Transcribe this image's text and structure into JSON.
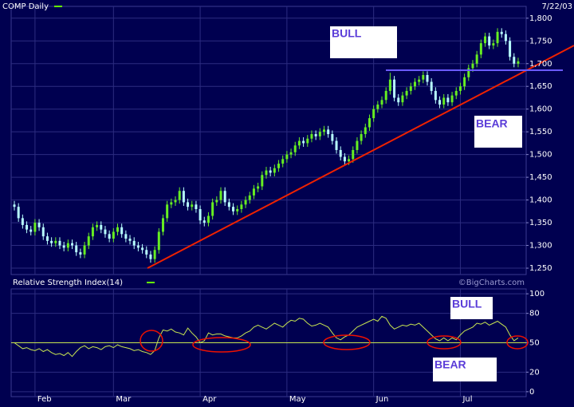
{
  "chart_data": [
    {
      "type": "candlestick",
      "title": "COMP Daily",
      "date": "7/22/03",
      "up_color": "#66ee22",
      "down_color": "#b8ffff",
      "grid": true,
      "ylim": [
        1236,
        1826
      ],
      "yticks": [
        {
          "value": 1250,
          "label": "1,250"
        },
        {
          "value": 1300,
          "label": "1,300"
        },
        {
          "value": 1350,
          "label": "1,350"
        },
        {
          "value": 1400,
          "label": "1,400"
        },
        {
          "value": 1450,
          "label": "1,450"
        },
        {
          "value": 1500,
          "label": "1,500"
        },
        {
          "value": 1550,
          "label": "1,550"
        },
        {
          "value": 1600,
          "label": "1,600"
        },
        {
          "value": 1650,
          "label": "1,650"
        },
        {
          "value": 1700,
          "label": "1,700"
        },
        {
          "value": 1750,
          "label": "1,750"
        },
        {
          "value": 1800,
          "label": "1,800"
        }
      ],
      "categories": [
        null,
        null,
        null,
        null,
        null,
        "Feb",
        null,
        null,
        null,
        null,
        null,
        null,
        null,
        null,
        null,
        null,
        null,
        null,
        null,
        null,
        null,
        null,
        null,
        null,
        "Mar",
        null,
        null,
        null,
        null,
        null,
        null,
        null,
        null,
        null,
        null,
        null,
        null,
        null,
        null,
        null,
        null,
        null,
        null,
        null,
        null,
        "Apr",
        null,
        null,
        null,
        null,
        null,
        null,
        null,
        null,
        null,
        null,
        null,
        null,
        null,
        null,
        null,
        null,
        null,
        null,
        null,
        null,
        "May",
        null,
        null,
        null,
        null,
        null,
        null,
        null,
        null,
        null,
        null,
        null,
        null,
        null,
        null,
        null,
        null,
        null,
        null,
        null,
        null,
        "Jun",
        null,
        null,
        null,
        null,
        null,
        null,
        null,
        null,
        null,
        null,
        null,
        null,
        null,
        null,
        null,
        null,
        null,
        null,
        null,
        null,
        "Jul",
        null,
        null,
        null,
        null,
        null,
        null,
        null,
        null,
        null,
        null,
        null,
        null,
        null,
        null
      ],
      "open": [
        1390,
        1385,
        1360,
        1345,
        1335,
        1330,
        1350,
        1340,
        1320,
        1310,
        1305,
        1310,
        1300,
        1295,
        1305,
        1300,
        1285,
        1280,
        1300,
        1320,
        1340,
        1345,
        1335,
        1325,
        1315,
        1330,
        1340,
        1325,
        1315,
        1310,
        1300,
        1295,
        1290,
        1280,
        1270,
        1290,
        1330,
        1360,
        1390,
        1395,
        1400,
        1420,
        1395,
        1385,
        1390,
        1380,
        1355,
        1350,
        1365,
        1395,
        1400,
        1420,
        1395,
        1385,
        1375,
        1380,
        1390,
        1400,
        1410,
        1425,
        1430,
        1455,
        1465,
        1460,
        1470,
        1480,
        1490,
        1500,
        1505,
        1520,
        1530,
        1525,
        1535,
        1545,
        1540,
        1550,
        1555,
        1545,
        1530,
        1510,
        1495,
        1485,
        1490,
        1510,
        1530,
        1545,
        1560,
        1580,
        1600,
        1610,
        1620,
        1640,
        1665,
        1625,
        1615,
        1630,
        1640,
        1650,
        1660,
        1665,
        1675,
        1660,
        1640,
        1620,
        1610,
        1625,
        1615,
        1630,
        1640,
        1650,
        1670,
        1690,
        1700,
        1720,
        1745,
        1760,
        1740,
        1745,
        1770,
        1765,
        1750,
        1715,
        1700
      ],
      "high": [
        1398,
        1393,
        1368,
        1353,
        1343,
        1358,
        1358,
        1348,
        1328,
        1318,
        1318,
        1318,
        1308,
        1313,
        1313,
        1308,
        1293,
        1308,
        1328,
        1348,
        1353,
        1353,
        1343,
        1333,
        1338,
        1348,
        1348,
        1333,
        1323,
        1318,
        1308,
        1303,
        1298,
        1288,
        1298,
        1338,
        1368,
        1398,
        1403,
        1408,
        1428,
        1428,
        1403,
        1398,
        1398,
        1388,
        1363,
        1373,
        1403,
        1408,
        1428,
        1428,
        1403,
        1393,
        1388,
        1398,
        1408,
        1418,
        1433,
        1438,
        1463,
        1473,
        1473,
        1478,
        1488,
        1498,
        1508,
        1513,
        1528,
        1538,
        1538,
        1543,
        1553,
        1553,
        1558,
        1563,
        1563,
        1553,
        1538,
        1518,
        1503,
        1498,
        1518,
        1538,
        1553,
        1568,
        1588,
        1608,
        1618,
        1628,
        1648,
        1680,
        1673,
        1633,
        1638,
        1648,
        1658,
        1668,
        1673,
        1683,
        1683,
        1668,
        1648,
        1628,
        1633,
        1633,
        1638,
        1648,
        1658,
        1678,
        1698,
        1708,
        1728,
        1753,
        1768,
        1768,
        1753,
        1778,
        1778,
        1773,
        1758,
        1723,
        1713
      ],
      "low": [
        1377,
        1352,
        1337,
        1327,
        1322,
        1322,
        1332,
        1312,
        1302,
        1297,
        1297,
        1292,
        1287,
        1287,
        1292,
        1277,
        1272,
        1272,
        1292,
        1312,
        1332,
        1327,
        1317,
        1307,
        1307,
        1322,
        1317,
        1307,
        1302,
        1292,
        1287,
        1282,
        1272,
        1262,
        1262,
        1282,
        1322,
        1352,
        1382,
        1387,
        1392,
        1387,
        1377,
        1377,
        1372,
        1347,
        1342,
        1342,
        1357,
        1387,
        1392,
        1387,
        1377,
        1367,
        1367,
        1372,
        1382,
        1392,
        1402,
        1417,
        1422,
        1447,
        1452,
        1452,
        1462,
        1472,
        1482,
        1492,
        1497,
        1512,
        1517,
        1517,
        1527,
        1532,
        1532,
        1542,
        1537,
        1522,
        1502,
        1487,
        1477,
        1477,
        1482,
        1502,
        1522,
        1537,
        1552,
        1572,
        1592,
        1602,
        1612,
        1632,
        1617,
        1607,
        1607,
        1622,
        1632,
        1642,
        1652,
        1657,
        1652,
        1632,
        1612,
        1602,
        1602,
        1607,
        1607,
        1622,
        1632,
        1642,
        1662,
        1682,
        1692,
        1712,
        1737,
        1732,
        1732,
        1737,
        1757,
        1742,
        1707,
        1692,
        1692
      ],
      "close": [
        1385,
        1360,
        1345,
        1335,
        1330,
        1350,
        1340,
        1320,
        1310,
        1305,
        1310,
        1300,
        1295,
        1305,
        1300,
        1285,
        1280,
        1300,
        1320,
        1340,
        1345,
        1335,
        1325,
        1315,
        1330,
        1340,
        1325,
        1315,
        1310,
        1300,
        1295,
        1290,
        1280,
        1270,
        1290,
        1330,
        1360,
        1390,
        1395,
        1400,
        1420,
        1395,
        1385,
        1390,
        1380,
        1355,
        1350,
        1365,
        1395,
        1400,
        1420,
        1395,
        1385,
        1375,
        1380,
        1390,
        1400,
        1410,
        1425,
        1430,
        1455,
        1465,
        1460,
        1470,
        1480,
        1490,
        1500,
        1505,
        1520,
        1530,
        1525,
        1535,
        1545,
        1540,
        1550,
        1555,
        1545,
        1530,
        1510,
        1495,
        1485,
        1490,
        1510,
        1530,
        1545,
        1560,
        1580,
        1600,
        1610,
        1620,
        1640,
        1665,
        1625,
        1615,
        1630,
        1640,
        1650,
        1660,
        1665,
        1675,
        1660,
        1640,
        1620,
        1610,
        1625,
        1615,
        1630,
        1640,
        1650,
        1670,
        1690,
        1700,
        1720,
        1745,
        1760,
        1740,
        1745,
        1770,
        1765,
        1750,
        1715,
        1700,
        1705
      ],
      "annotations": [
        "BULL",
        "BEAR"
      ]
    },
    {
      "type": "line",
      "title": "Relative Strength Index(14)",
      "credit": "©BigCharts.com",
      "color": "#c8e650",
      "grid": true,
      "ylim": [
        -5,
        105
      ],
      "yticks": [
        0,
        20,
        50,
        80,
        100
      ],
      "values": [
        50,
        47,
        44,
        45,
        43,
        42,
        44,
        41,
        43,
        40,
        38,
        39,
        37,
        40,
        36,
        41,
        45,
        47,
        44,
        46,
        45,
        43,
        46,
        47,
        45,
        48,
        46,
        45,
        44,
        42,
        43,
        41,
        40,
        38,
        42,
        55,
        63,
        62,
        64,
        61,
        60,
        58,
        65,
        60,
        56,
        50,
        52,
        60,
        58,
        59,
        59,
        57,
        56,
        55,
        55,
        57,
        60,
        62,
        66,
        68,
        66,
        64,
        67,
        70,
        68,
        66,
        70,
        73,
        72,
        75,
        74,
        70,
        67,
        68,
        70,
        68,
        66,
        60,
        55,
        53,
        56,
        58,
        62,
        66,
        68,
        70,
        72,
        74,
        72,
        77,
        75,
        68,
        64,
        66,
        68,
        67,
        69,
        68,
        70,
        66,
        62,
        58,
        54,
        52,
        55,
        52,
        55,
        53,
        58,
        62,
        64,
        66,
        70,
        69,
        71,
        68,
        70,
        72,
        69,
        66,
        58,
        52,
        55
      ],
      "annotations": [
        "BULL",
        "BEAR"
      ]
    }
  ]
}
